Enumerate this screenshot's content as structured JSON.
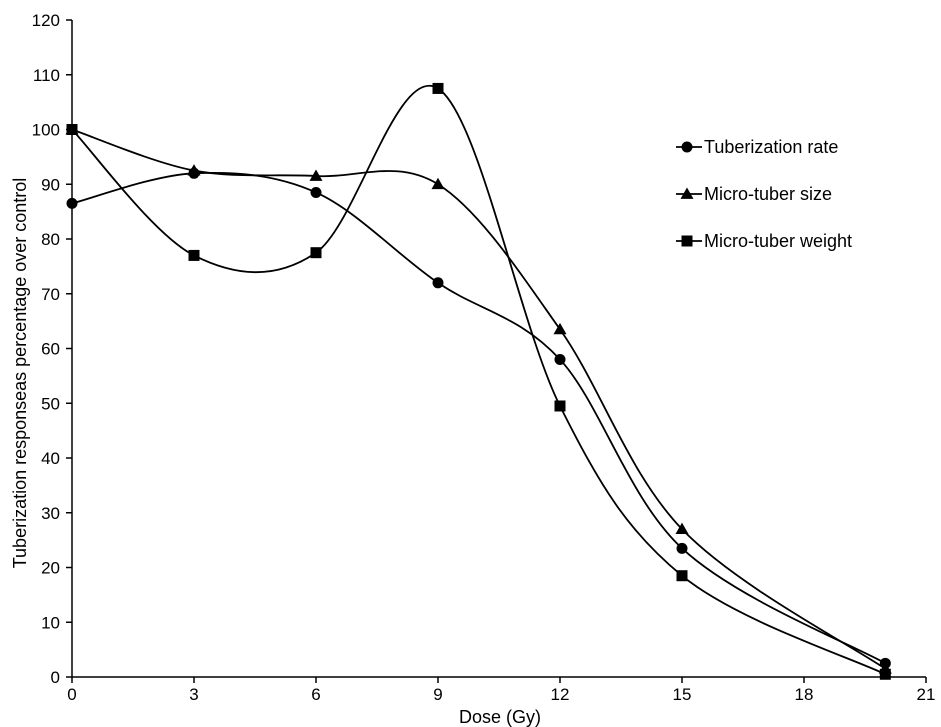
{
  "chart_data": {
    "type": "line",
    "title": "",
    "xlabel": "Dose (Gy)",
    "ylabel": "Tuberization responseas percentage over control",
    "xlim": [
      0,
      21
    ],
    "ylim": [
      0,
      120
    ],
    "xticks": [
      "0",
      "3",
      "6",
      "9",
      "12",
      "15",
      "18",
      "21"
    ],
    "yticks": [
      "0",
      "10",
      "20",
      "30",
      "40",
      "50",
      "60",
      "70",
      "80",
      "90",
      "100",
      "110",
      "120"
    ],
    "grid": false,
    "legend_position": "right",
    "line_style": "smoothed",
    "series": [
      {
        "name": "Tuberization rate",
        "marker": "circle",
        "color": "#000000",
        "x": [
          0,
          3,
          6,
          9,
          12,
          15,
          20
        ],
        "values": [
          86.5,
          92,
          88.5,
          72,
          58,
          23.5,
          2.5
        ]
      },
      {
        "name": "Micro-tuber size",
        "marker": "triangle",
        "color": "#000000",
        "x": [
          0,
          3,
          6,
          9,
          12,
          15,
          20
        ],
        "values": [
          100,
          92.5,
          91.5,
          90,
          63.5,
          27,
          1.5
        ]
      },
      {
        "name": "Micro-tuber weight",
        "marker": "square",
        "color": "#000000",
        "x": [
          0,
          3,
          6,
          9,
          12,
          15,
          20
        ],
        "values": [
          100,
          77,
          77.5,
          107.5,
          49.5,
          18.5,
          0.5
        ]
      }
    ]
  }
}
